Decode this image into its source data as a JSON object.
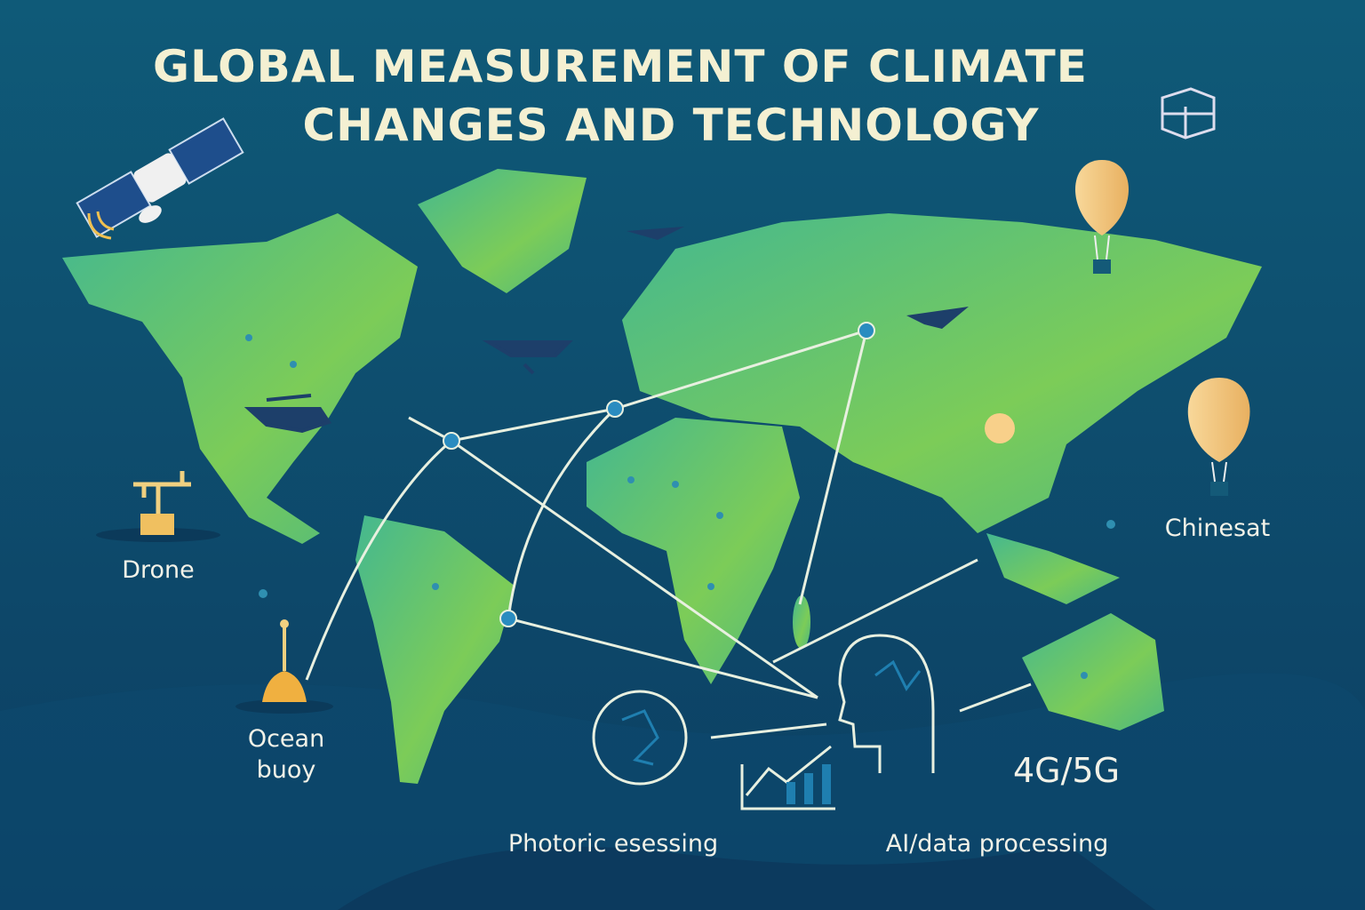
{
  "title": [
    "GLOBAL MEASUREMENT OF CLIMATE",
    "CHANGES AND TECHNOLOGY"
  ],
  "labels": {
    "drone": "Drone",
    "ocean_buoy": [
      "Ocean",
      "buoy"
    ],
    "chinesat": "Chinesat",
    "photonic": "Photoric esessing",
    "ai": "AI/data processing",
    "network": "4G/5G"
  }
}
